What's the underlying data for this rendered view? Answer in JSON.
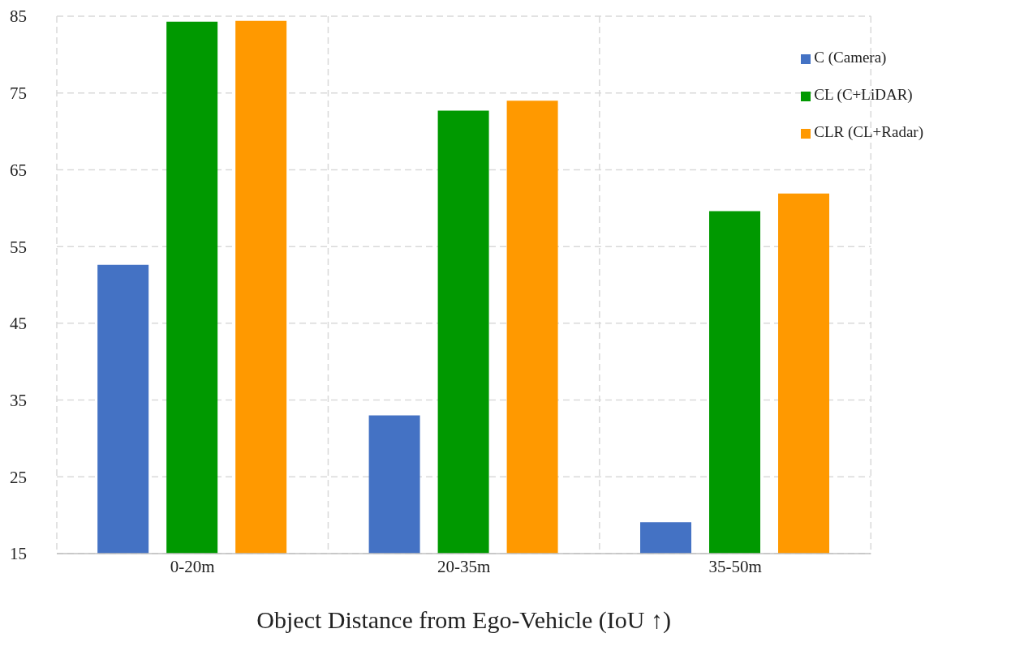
{
  "chart_data": {
    "type": "bar",
    "xlabel": "Object Distance from Ego-Vehicle (IoU ↑)",
    "categories": [
      "0-20m",
      "20-35m",
      "35-50m"
    ],
    "series": [
      {
        "name": "C (Camera)",
        "color": "#4472c4",
        "values": [
          52.6,
          33.0,
          19.1
        ]
      },
      {
        "name": "CL (C+LiDAR)",
        "color": "#009900",
        "values": [
          84.3,
          72.7,
          59.6
        ]
      },
      {
        "name": "CLR (CL+Radar)",
        "color": "#ff9900",
        "values": [
          84.4,
          74.0,
          61.9
        ]
      }
    ],
    "ylim": [
      15,
      85
    ],
    "yticks": [
      15,
      25,
      35,
      45,
      55,
      65,
      75,
      85
    ],
    "grid": true,
    "legend": "top right"
  }
}
